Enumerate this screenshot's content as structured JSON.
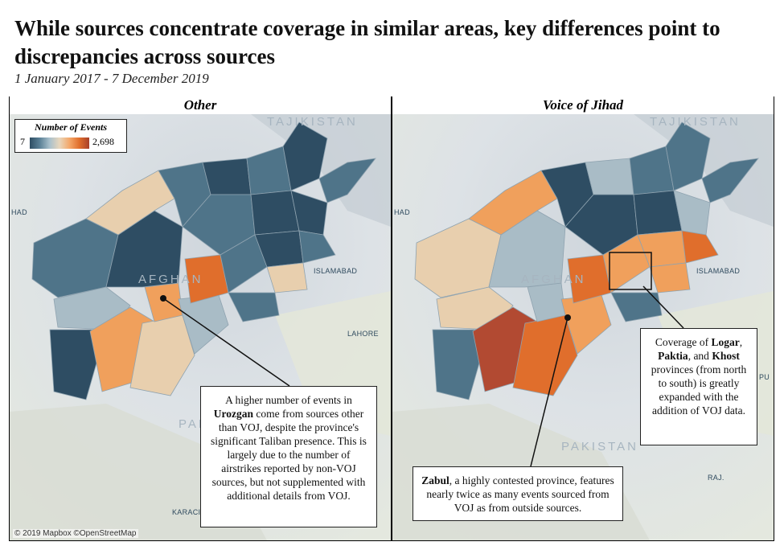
{
  "title": "While sources concentrate coverage in similar areas, key differences point to discrepancies across sources",
  "subtitle": "1 January 2017 - 7 December 2019",
  "legend": {
    "title": "Number of Events",
    "min": "7",
    "max": "2,698"
  },
  "panels": [
    {
      "label": "Other",
      "credit": "© 2019 Mapbox ©OpenStreetMap",
      "places": {
        "tajikistan": "TAJIKISTAN",
        "herat": "HAD",
        "islamabad": "ISLAMABAD",
        "lahore": "LAHORE",
        "pakistan": "PAKISTAN",
        "karachi": "KARACI",
        "afghan": "AFGHAN"
      }
    },
    {
      "label": "Voice of Jihad",
      "places": {
        "tajikistan": "TAJIKISTAN",
        "herat": "HAD",
        "islamabad": "ISLAMABAD",
        "pakistan": "PAKISTAN",
        "raj": "RAJ.",
        "pu": "PU",
        "afghan": "AFGHAN"
      }
    }
  ],
  "callouts": {
    "urozgan": {
      "pre": "A higher number of events in ",
      "bold": "Urozgan",
      "post": " come from sources other than VOJ, despite the province's significant Taliban presence. This is largely due to the number of airstrikes reported by non-VOJ sources, but not supplemented with additional details from VOJ."
    },
    "zabul": {
      "bold": "Zabul",
      "post": ", a highly contested province, features nearly twice as many events sourced from VOJ as from outside sources."
    },
    "logar": {
      "t1": "Coverage of ",
      "b1": "Logar",
      "t2": ",",
      "b2": "Paktia",
      "t3": ", and ",
      "b3": "Khost",
      "t4": " provinces (from north to south) is greatly expanded with the addition of VOJ data."
    }
  },
  "colors": {
    "dark": "#2e4d63",
    "mid": "#4f7489",
    "light": "#a9bcc6",
    "pale": "#e8cfae",
    "orange": "#f0a05c",
    "deep": "#e06e2c",
    "rust": "#b24a32"
  }
}
